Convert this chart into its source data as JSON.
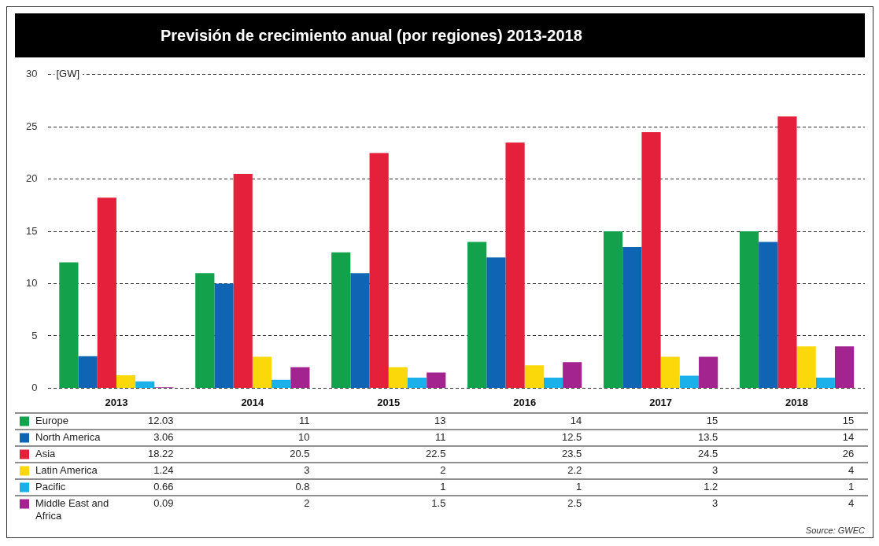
{
  "chart_data": {
    "type": "bar",
    "title": "Previsión de crecimiento anual (por regiones) 2013-2018",
    "ylabel": "[GW]",
    "categories": [
      "2013",
      "2014",
      "2015",
      "2016",
      "2017",
      "2018"
    ],
    "series": [
      {
        "name": "Europe",
        "color": "#13a24b",
        "values": [
          12.03,
          11,
          13,
          14,
          15,
          15
        ]
      },
      {
        "name": "North America",
        "color": "#0f64b3",
        "values": [
          3.06,
          10,
          11,
          12.5,
          13.5,
          14
        ]
      },
      {
        "name": "Asia",
        "color": "#e5203a",
        "values": [
          18.22,
          20.5,
          22.5,
          23.5,
          24.5,
          26
        ]
      },
      {
        "name": "Latin America",
        "color": "#fad80a",
        "values": [
          1.24,
          3,
          2,
          2.2,
          3,
          4
        ]
      },
      {
        "name": "Pacific",
        "color": "#1ab0ea",
        "values": [
          0.66,
          0.8,
          1,
          1,
          1.2,
          1
        ]
      },
      {
        "name": "Middle East and Africa",
        "color": "#a3248f",
        "values": [
          0.09,
          2,
          1.5,
          2.5,
          3,
          4
        ]
      }
    ],
    "ylim": [
      0,
      30
    ],
    "yticks": [
      0,
      5,
      10,
      15,
      20,
      25,
      30
    ],
    "grid": "y",
    "legend": "bottom",
    "data_labels": true,
    "annotations": [
      "Source: GWEC"
    ]
  }
}
